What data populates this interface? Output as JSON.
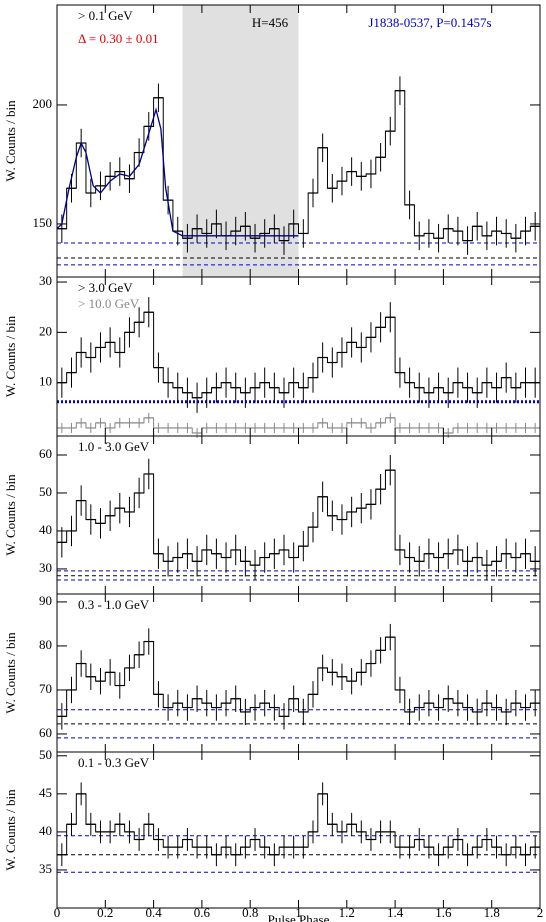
{
  "chart_data": [
    {
      "type": "histogram",
      "xlim": [
        0,
        2
      ],
      "ylim": [
        127.7,
        242
      ],
      "yticks": [
        150,
        200
      ],
      "ylabel": "W. Counts / bin",
      "bins": [
        0,
        0.04,
        0.08,
        0.12,
        0.16,
        0.2,
        0.24,
        0.28,
        0.32,
        0.36,
        0.4,
        0.44,
        0.48,
        0.52,
        0.56,
        0.6,
        0.64,
        0.68,
        0.72,
        0.76,
        0.8,
        0.84,
        0.88,
        0.92,
        0.96,
        1,
        1.04,
        1.08,
        1.12,
        1.16,
        1.2,
        1.24,
        1.28,
        1.32,
        1.36,
        1.4,
        1.44,
        1.48,
        1.52,
        1.56,
        1.6,
        1.64,
        1.68,
        1.72,
        1.76,
        1.8,
        1.84,
        1.88,
        1.92,
        1.96,
        2
      ],
      "series": [
        {
          "name": "> 0.1 GeV",
          "color": "#000000",
          "error": 6,
          "values": [
            148,
            165,
            184,
            163,
            166,
            170,
            172,
            169,
            180,
            191,
            203,
            160,
            147,
            144,
            148,
            146,
            150,
            145,
            147,
            149,
            144,
            146,
            148,
            143,
            150,
            146,
            163,
            182,
            165,
            168,
            172,
            170,
            171,
            178,
            189,
            206,
            158,
            145,
            146,
            144,
            148,
            147,
            143,
            149,
            145,
            147,
            146,
            144,
            147,
            149
          ]
        }
      ],
      "shade": [
        0.52,
        1.0
      ],
      "annotations": [
        {
          "text": "Δ = 0.30 ± 0.01",
          "color": "#e00000"
        },
        {
          "text": "H=456",
          "color": "#000000"
        },
        {
          "text": "J1838-0537, P=0.1457s",
          "color": "#0000cc"
        }
      ],
      "fit": {
        "color": "#00008b",
        "x": [
          0,
          0.02,
          0.05,
          0.08,
          0.1,
          0.12,
          0.15,
          0.18,
          0.22,
          0.26,
          0.3,
          0.34,
          0.38,
          0.41,
          0.43,
          0.45,
          0.48,
          0.52,
          0.6,
          0.8,
          1.0
        ],
        "values": [
          148,
          150,
          165,
          178,
          184,
          180,
          166,
          163,
          168,
          171,
          170,
          175,
          188,
          198,
          190,
          165,
          147,
          145,
          145,
          145,
          145
        ]
      },
      "hlines": [
        {
          "value": 142,
          "color": "#0000cc",
          "style": "dashed"
        },
        {
          "value": 135.7,
          "color": "#000000",
          "style": "dashed"
        },
        {
          "value": 132.8,
          "color": "#0000cc",
          "style": "dashed"
        }
      ]
    },
    {
      "type": "histogram",
      "xlim": [
        0,
        2
      ],
      "ylim": [
        -0.6,
        31
      ],
      "yticks": [
        10,
        20,
        30
      ],
      "ylabel": "W. Counts / bin",
      "bins": [
        0,
        0.04,
        0.08,
        0.12,
        0.16,
        0.2,
        0.24,
        0.28,
        0.32,
        0.36,
        0.4,
        0.44,
        0.48,
        0.52,
        0.56,
        0.6,
        0.64,
        0.68,
        0.72,
        0.76,
        0.8,
        0.84,
        0.88,
        0.92,
        0.96,
        1,
        1.04,
        1.08,
        1.12,
        1.16,
        1.2,
        1.24,
        1.28,
        1.32,
        1.36,
        1.4,
        1.44,
        1.48,
        1.52,
        1.56,
        1.6,
        1.64,
        1.68,
        1.72,
        1.76,
        1.8,
        1.84,
        1.88,
        1.92,
        1.96,
        2
      ],
      "series": [
        {
          "name": "> 3.0 GeV",
          "color": "#000000",
          "error": 3,
          "values": [
            10,
            12,
            16,
            15,
            17,
            18,
            16,
            20,
            22,
            24,
            13,
            10,
            9,
            8,
            7,
            8,
            9,
            10,
            9,
            8,
            9,
            10,
            9,
            8,
            10,
            9,
            11,
            15,
            14,
            16,
            18,
            17,
            19,
            21,
            23,
            12,
            10,
            9,
            8,
            9,
            8,
            10,
            9,
            8,
            10,
            9,
            11,
            9,
            10,
            10
          ]
        },
        {
          "name": "> 10.0 GeV",
          "color": "#888888",
          "error": 1,
          "values": [
            1,
            1,
            2,
            1,
            2,
            1,
            2,
            2,
            2,
            3,
            1,
            1,
            1,
            1,
            0,
            1,
            1,
            1,
            1,
            1,
            1,
            1,
            1,
            1,
            1,
            1,
            1,
            2,
            1,
            1,
            2,
            2,
            1,
            2,
            3,
            1,
            1,
            1,
            1,
            1,
            0,
            1,
            1,
            1,
            1,
            1,
            1,
            1,
            1,
            1
          ]
        }
      ],
      "hlines": [
        {
          "value": 6.2,
          "color": "#0000cc",
          "style": "dotted"
        }
      ]
    },
    {
      "type": "histogram",
      "xlim": [
        0,
        2
      ],
      "ylim": [
        23.4,
        65
      ],
      "yticks": [
        30,
        40,
        50,
        60
      ],
      "ylabel": "W. Counts / bin",
      "bins": [
        0,
        0.04,
        0.08,
        0.12,
        0.16,
        0.2,
        0.24,
        0.28,
        0.32,
        0.36,
        0.4,
        0.44,
        0.48,
        0.52,
        0.56,
        0.6,
        0.64,
        0.68,
        0.72,
        0.76,
        0.8,
        0.84,
        0.88,
        0.92,
        0.96,
        1,
        1.04,
        1.08,
        1.12,
        1.16,
        1.2,
        1.24,
        1.28,
        1.32,
        1.36,
        1.4,
        1.44,
        1.48,
        1.52,
        1.56,
        1.6,
        1.64,
        1.68,
        1.72,
        1.76,
        1.8,
        1.84,
        1.88,
        1.92,
        1.96,
        2
      ],
      "series": [
        {
          "name": "1.0 - 3.0 GeV",
          "color": "#000000",
          "error": 4,
          "values": [
            37,
            40,
            48,
            43,
            42,
            44,
            46,
            45,
            50,
            55,
            34,
            32,
            33,
            34,
            32,
            35,
            34,
            33,
            35,
            32,
            31,
            33,
            34,
            35,
            33,
            36,
            41,
            49,
            44,
            43,
            45,
            46,
            47,
            51,
            56,
            35,
            33,
            32,
            34,
            33,
            34,
            35,
            32,
            33,
            31,
            32,
            34,
            33,
            34,
            32
          ]
        }
      ],
      "hlines": [
        {
          "value": 29.5,
          "color": "#0000cc",
          "style": "dashed"
        },
        {
          "value": 28.2,
          "color": "#000000",
          "style": "dashed"
        },
        {
          "value": 27.1,
          "color": "#0000cc",
          "style": "dashed"
        }
      ]
    },
    {
      "type": "histogram",
      "xlim": [
        0,
        2
      ],
      "ylim": [
        55.9,
        91.8
      ],
      "yticks": [
        60,
        70,
        80,
        90
      ],
      "ylabel": "W. Counts / bin",
      "bins": [
        0,
        0.04,
        0.08,
        0.12,
        0.16,
        0.2,
        0.24,
        0.28,
        0.32,
        0.36,
        0.4,
        0.44,
        0.48,
        0.52,
        0.56,
        0.6,
        0.64,
        0.68,
        0.72,
        0.76,
        0.8,
        0.84,
        0.88,
        0.92,
        0.96,
        1,
        1.04,
        1.08,
        1.12,
        1.16,
        1.2,
        1.24,
        1.28,
        1.32,
        1.36,
        1.4,
        1.44,
        1.48,
        1.52,
        1.56,
        1.6,
        1.64,
        1.68,
        1.72,
        1.76,
        1.8,
        1.84,
        1.88,
        1.92,
        1.96,
        2
      ],
      "series": [
        {
          "name": "0.3 - 1.0 GeV",
          "color": "#000000",
          "error": 3,
          "values": [
            64,
            70,
            76,
            73,
            72,
            74,
            71,
            75,
            78,
            81,
            69,
            66,
            67,
            66,
            68,
            67,
            66,
            67,
            68,
            65,
            66,
            67,
            66,
            64,
            68,
            65,
            69,
            75,
            74,
            73,
            72,
            74,
            76,
            79,
            82,
            70,
            65,
            66,
            67,
            66,
            68,
            67,
            66,
            65,
            67,
            66,
            65,
            67,
            66,
            67
          ]
        }
      ],
      "hlines": [
        {
          "value": 65.5,
          "color": "#0000cc",
          "style": "dashed"
        },
        {
          "value": 62.3,
          "color": "#000000",
          "style": "dashed"
        },
        {
          "value": 59.1,
          "color": "#0000cc",
          "style": "dashed"
        }
      ]
    },
    {
      "type": "histogram",
      "xlim": [
        0,
        2
      ],
      "ylim": [
        30,
        50.5
      ],
      "yticks": [
        35,
        40,
        45,
        50
      ],
      "ylabel": "W. Counts / bin",
      "xlabel": "Pulse Phase",
      "xticks": [
        0,
        0.2,
        0.4,
        0.6,
        0.8,
        1,
        1.2,
        1.4,
        1.6,
        1.8,
        2
      ],
      "bins": [
        0,
        0.04,
        0.08,
        0.12,
        0.16,
        0.2,
        0.24,
        0.28,
        0.32,
        0.36,
        0.4,
        0.44,
        0.48,
        0.52,
        0.56,
        0.6,
        0.64,
        0.68,
        0.72,
        0.76,
        0.8,
        0.84,
        0.88,
        0.92,
        0.96,
        1,
        1.04,
        1.08,
        1.12,
        1.16,
        1.2,
        1.24,
        1.28,
        1.32,
        1.36,
        1.4,
        1.44,
        1.48,
        1.52,
        1.56,
        1.6,
        1.64,
        1.68,
        1.72,
        1.76,
        1.8,
        1.84,
        1.88,
        1.92,
        1.96,
        2
      ],
      "series": [
        {
          "name": "0.1 - 0.3 GeV",
          "color": "#000000",
          "error": 1.5,
          "values": [
            37,
            41,
            45,
            41,
            40,
            40,
            41,
            40,
            39,
            41,
            39,
            38,
            38,
            39,
            38,
            38,
            37,
            38,
            37,
            38,
            39,
            38,
            37,
            38,
            38,
            38,
            40,
            45,
            41,
            40,
            41,
            40,
            39,
            40,
            40,
            38,
            38,
            39,
            38,
            37,
            38,
            39,
            37,
            38,
            39,
            38,
            37,
            38,
            37,
            38
          ]
        }
      ],
      "hlines": [
        {
          "value": 39.5,
          "color": "#0000cc",
          "style": "dashed"
        },
        {
          "value": 37,
          "color": "#000000",
          "style": "dashed"
        },
        {
          "value": 34.7,
          "color": "#0000cc",
          "style": "dashed"
        }
      ]
    }
  ]
}
